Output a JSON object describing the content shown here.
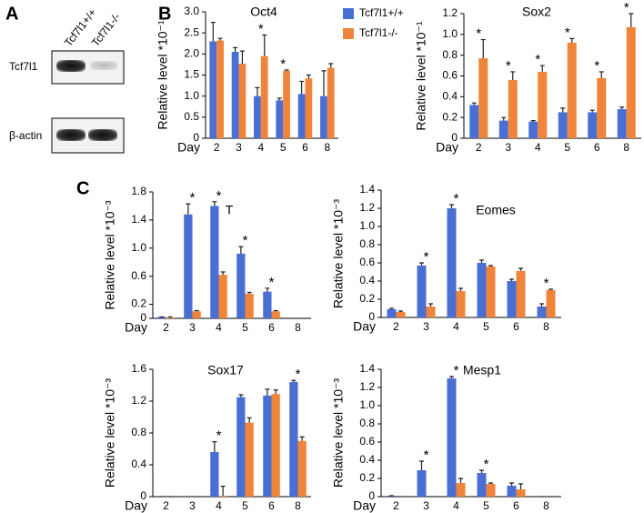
{
  "figure": {
    "panel_labels": [
      "A",
      "B",
      "C"
    ],
    "blot": {
      "lanes": [
        "Tcf7l1+/+",
        "Tcf7l1-/-"
      ],
      "rows": [
        "Tcf7l1",
        "β-actin"
      ]
    }
  },
  "chart_data": [
    {
      "type": "bar",
      "title": "Oct4",
      "y_label": "Relative level *10⁻¹",
      "x_label": "Day",
      "legend": true,
      "categories": [
        "2",
        "3",
        "4",
        "5",
        "6",
        "8"
      ],
      "ylim": [
        0,
        3
      ],
      "yticks": [
        0,
        0.5,
        {
          "value": 1,
          "label": "1.0"
        },
        1.5,
        {
          "value": 2,
          "label": "2.0"
        },
        2.5,
        {
          "value": 3,
          "label": "3.0"
        }
      ],
      "series": [
        {
          "name": "Tcf7l1+/+",
          "color": "#4a6fd4",
          "values": [
            2.3,
            2.05,
            1.0,
            0.9,
            1.05,
            1.0
          ],
          "errors": [
            0.45,
            0.1,
            0.2,
            0.05,
            0.3,
            0.6
          ]
        },
        {
          "name": "Tcf7l1-/-",
          "color": "#f0843a",
          "values": [
            2.32,
            1.77,
            1.95,
            1.6,
            1.42,
            1.67
          ],
          "errors": [
            0.05,
            0.3,
            0.5,
            0.02,
            0.08,
            0.1
          ]
        }
      ],
      "significance_label": "*",
      "significant": [
        false,
        false,
        true,
        true,
        false,
        false
      ]
    },
    {
      "type": "bar",
      "title": "Sox2",
      "y_label": "Relative level *10⁻¹",
      "x_label": "Day",
      "categories": [
        "2",
        "3",
        "4",
        "5",
        "6",
        "8"
      ],
      "ylim": [
        0,
        1.2
      ],
      "yticks": [
        0,
        0.2,
        0.4,
        0.6,
        0.8,
        {
          "value": 1,
          "label": "1.0"
        },
        1.2
      ],
      "series": [
        {
          "color": "#4a6fd4",
          "values": [
            0.32,
            0.17,
            0.16,
            0.25,
            0.25,
            0.28
          ],
          "errors": [
            0.02,
            0.03,
            0.01,
            0.04,
            0.02,
            0.02
          ]
        },
        {
          "color": "#f0843a",
          "values": [
            0.77,
            0.56,
            0.64,
            0.92,
            0.58,
            1.07
          ],
          "errors": [
            0.18,
            0.08,
            0.06,
            0.04,
            0.06,
            0.13
          ]
        }
      ],
      "significance_label": "*",
      "significant": [
        true,
        true,
        true,
        true,
        true,
        true
      ]
    },
    {
      "type": "bar",
      "title": "T",
      "y_label": "Relative level *10⁻³",
      "x_label": "Day",
      "categories": [
        "2",
        "3",
        "4",
        "5",
        "6",
        "8"
      ],
      "ylim": [
        0,
        1.8
      ],
      "yticks": [
        0,
        0.2,
        0.6,
        {
          "value": 1,
          "label": "1.0"
        },
        1.4,
        1.8
      ],
      "series": [
        {
          "color": "#4a6fd4",
          "values": [
            0.02,
            1.48,
            1.6,
            0.92,
            0.38,
            0
          ],
          "errors": [
            0,
            0.15,
            0.06,
            0.1,
            0.05,
            0
          ]
        },
        {
          "color": "#f0843a",
          "values": [
            0.01,
            0.1,
            0.62,
            0.35,
            0.1,
            0
          ],
          "errors": [
            0.01,
            0.01,
            0.04,
            0.02,
            0.01,
            0
          ]
        }
      ],
      "significance_label": "*",
      "significant": [
        false,
        true,
        true,
        true,
        true,
        false
      ]
    },
    {
      "type": "bar",
      "title": "Eomes",
      "y_label": "Relative level *10⁻³",
      "x_label": "Day",
      "categories": [
        "2",
        "3",
        "4",
        "5",
        "6",
        "8"
      ],
      "ylim": [
        0,
        1.4
      ],
      "yticks": [
        0,
        0.2,
        0.4,
        0.6,
        0.8,
        {
          "value": 1,
          "label": "1.0"
        },
        1.2,
        1.4
      ],
      "series": [
        {
          "color": "#4a6fd4",
          "values": [
            0.09,
            0.57,
            1.2,
            0.6,
            0.4,
            0.12
          ],
          "errors": [
            0.01,
            0.03,
            0.04,
            0.03,
            0.02,
            0.03
          ]
        },
        {
          "color": "#f0843a",
          "values": [
            0.06,
            0.12,
            0.29,
            0.56,
            0.51,
            0.3
          ],
          "errors": [
            0.01,
            0.03,
            0.03,
            0.01,
            0.03,
            0.01
          ]
        }
      ],
      "significance_label": "*",
      "significant": [
        false,
        true,
        true,
        false,
        false,
        true
      ]
    },
    {
      "type": "bar",
      "title": "Sox17",
      "y_label": "Relative level *10⁻³",
      "x_label": "Day",
      "categories": [
        "2",
        "3",
        "4",
        "5",
        "6",
        "8"
      ],
      "ylim": [
        0,
        1.6
      ],
      "yticks": [
        0,
        0.4,
        0.8,
        1.2,
        1.6
      ],
      "series": [
        {
          "color": "#4a6fd4",
          "values": [
            0,
            0,
            0.56,
            1.25,
            1.27,
            1.44
          ],
          "errors": [
            0,
            0,
            0.13,
            0.03,
            0.08,
            0.02
          ]
        },
        {
          "color": "#f0843a",
          "values": [
            0,
            0,
            0.01,
            0.93,
            1.29,
            0.7
          ],
          "errors": [
            0,
            0,
            0.12,
            0.06,
            0.05,
            0.05
          ]
        }
      ],
      "significance_label": "*",
      "significant": [
        false,
        false,
        true,
        false,
        false,
        true
      ]
    },
    {
      "type": "bar",
      "title": "Mesp1",
      "y_label": "Relative level *10⁻³",
      "x_label": "Day",
      "categories": [
        "2",
        "3",
        "4",
        "5",
        "6",
        "8"
      ],
      "ylim": [
        0,
        1.4
      ],
      "yticks": [
        0,
        0.2,
        0.4,
        0.6,
        0.8,
        {
          "value": 1,
          "label": "1.0"
        },
        1.2,
        1.4
      ],
      "series": [
        {
          "color": "#4a6fd4",
          "values": [
            0.01,
            0.29,
            1.3,
            0.26,
            0.12,
            0
          ],
          "errors": [
            0,
            0.1,
            0.02,
            0.03,
            0.03,
            0
          ]
        },
        {
          "color": "#f0843a",
          "values": [
            0,
            0,
            0.15,
            0.14,
            0.08,
            0
          ],
          "errors": [
            0,
            0,
            0.05,
            0.01,
            0.06,
            0
          ]
        }
      ],
      "significance_label": "*",
      "significant": [
        false,
        true,
        true,
        true,
        false,
        false
      ]
    }
  ]
}
